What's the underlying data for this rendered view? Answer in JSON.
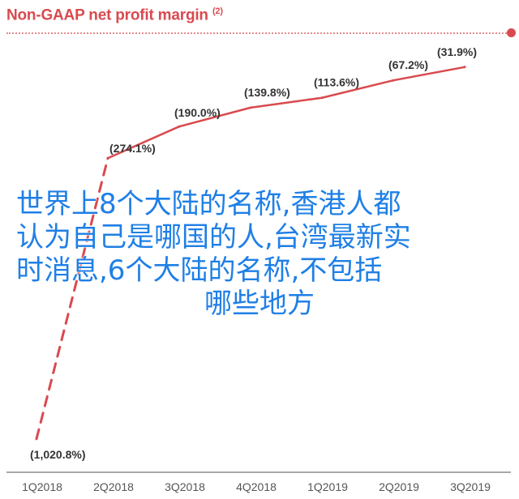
{
  "title": "Non-GAAP net profit margin",
  "title_note": "(2)",
  "chart_data": {
    "type": "line",
    "title": "Non-GAAP net profit margin",
    "categories": [
      "1Q2018",
      "2Q2018",
      "3Q2018",
      "4Q2018",
      "1Q2019",
      "2Q2019",
      "3Q2019"
    ],
    "values": [
      -1020.8,
      -274.1,
      -190.0,
      -139.8,
      -113.6,
      -67.2,
      -31.9
    ],
    "data_labels": [
      "(1,020.8%)",
      "(274.1%)",
      "(190.0%)",
      "(139.8%)",
      "(113.6%)",
      "(67.2%)",
      "(31.9%)"
    ],
    "segment_styles": [
      "dashed",
      "solid",
      "solid",
      "solid",
      "solid",
      "solid"
    ],
    "ylim": [
      -1060,
      0
    ],
    "grid": false,
    "legend": "none",
    "line_color": "#d94a4f"
  },
  "overlay_text": {
    "line1": "世界上8个大陆的名称,香港人都",
    "line2": "认为自己是哪国的人,台湾最新实",
    "line3": "时消息,6个大陆的名称,不包括",
    "line4": "哪些地方"
  },
  "colors": {
    "accent": "#d94a4f",
    "overlay": "#1f7fe6",
    "tick_text": "#555555"
  }
}
